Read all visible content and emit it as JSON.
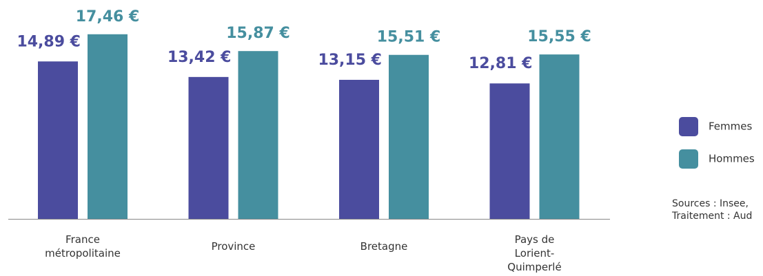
{
  "chart_data": {
    "type": "bar",
    "categories": [
      "France métropolitaine",
      "Province",
      "Bretagne",
      "Pays de Lorient-Quimperlé"
    ],
    "series": [
      {
        "name": "Femmes",
        "color": "#4b4c9e",
        "values": [
          14.89,
          13.42,
          13.15,
          12.81
        ],
        "value_labels": [
          "14,89 €",
          "13,42 €",
          "13,15 €",
          "12,81 €"
        ]
      },
      {
        "name": "Hommes",
        "color": "#458f9f",
        "values": [
          17.46,
          15.87,
          15.51,
          15.55
        ],
        "value_labels": [
          "17,46 €",
          "15,87 €",
          "15,51 €",
          "15,55 €"
        ]
      }
    ],
    "ylim": [
      0,
      20.7
    ],
    "sources": [
      "Sources : Insee,",
      "Traitement : Aud"
    ]
  }
}
